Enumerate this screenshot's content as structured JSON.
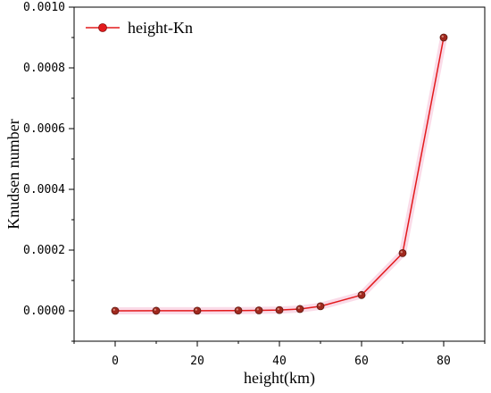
{
  "chart_data": {
    "type": "line",
    "xlabel": "height(km)",
    "ylabel": "Knudsen number",
    "xlim": [
      -10,
      90
    ],
    "ylim": [
      -0.0001,
      0.001
    ],
    "x_ticks": [
      0,
      20,
      40,
      60,
      80
    ],
    "x_tick_labels": [
      "0",
      "20",
      "40",
      "60",
      "80"
    ],
    "y_ticks": [
      0,
      0.0002,
      0.0004,
      0.0006,
      0.0008,
      0.001
    ],
    "y_tick_labels": [
      "0.0000",
      "0.0002",
      "0.0004",
      "0.0006",
      "0.0008",
      "0.0010"
    ],
    "grid": false,
    "legend_position": "top-left",
    "series": [
      {
        "name": "height-Kn",
        "color": "#e31a1c",
        "marker_color": "#a0281e",
        "x": [
          0,
          10,
          20,
          30,
          35,
          40,
          45,
          50,
          60,
          70,
          80
        ],
        "y": [
          1e-07,
          2e-07,
          4e-07,
          1e-06,
          1.5e-06,
          2.5e-06,
          6e-06,
          1.5e-05,
          5.2e-05,
          0.00019,
          0.0009
        ]
      }
    ]
  }
}
